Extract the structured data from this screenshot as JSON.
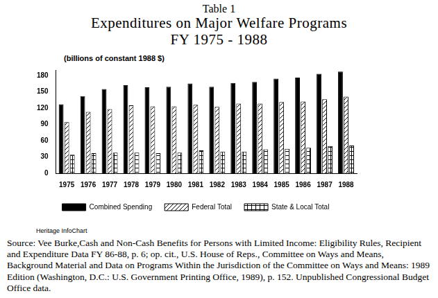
{
  "header": {
    "table_label": "Table 1",
    "title": "Expenditures on Major Welfare Programs",
    "subtitle": "FY 1975 - 1988"
  },
  "chart_data": {
    "type": "bar",
    "y_label": "(billions of constant 1988 $)",
    "categories": [
      "1975",
      "1976",
      "1977",
      "1978",
      "1979",
      "1980",
      "1981",
      "1982",
      "1983",
      "1984",
      "1985",
      "1986",
      "1987",
      "1988"
    ],
    "series": [
      {
        "name": "Combined Spending",
        "color": "#000000",
        "values": [
          127,
          142,
          155,
          162,
          158,
          159,
          165,
          159,
          166,
          168,
          174,
          176,
          183,
          187
        ]
      },
      {
        "name": "Federal Total",
        "color": "#000000",
        "values": [
          94,
          113,
          118,
          125,
          123,
          123,
          126,
          122,
          128,
          128,
          131,
          132,
          136,
          141
        ]
      },
      {
        "name": "State & Local Total",
        "color": "#000000",
        "values": [
          34,
          37,
          38,
          38,
          37,
          38,
          42,
          40,
          40,
          44,
          45,
          47,
          50,
          51
        ]
      }
    ],
    "ylim": [
      0,
      190
    ],
    "yticks": [
      0,
      30,
      60,
      90,
      120,
      150,
      180
    ],
    "grid": false,
    "legend": "bottom"
  },
  "footer": {
    "credit": "Heritage InfoChart",
    "source": "Source: Vee Burke,Cash and Non-Cash Benefits for Persons with Limited Income: Eligibility Rules, Recipient and Expenditure Data FY 86-88, p. 6; op. cit., U.S. House of Reps., Committee on Ways and Means, Background Material and Data on Programs Within the Jurisdiction of the Committee on Ways and Means: 1989 Edition (Washington, D.C.: U.S. Government Printing Office, 1989), p. 152. Unpublished Congressional Budget Office data."
  }
}
